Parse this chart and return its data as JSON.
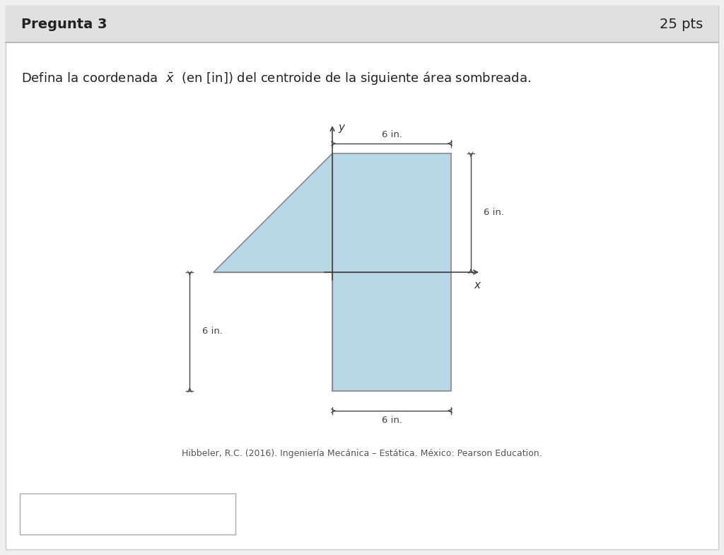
{
  "bg_color": "#f0f0f0",
  "panel_bg": "#ffffff",
  "header_bg": "#e0e0e0",
  "header_text": "Pregunta 3",
  "pts_text": "25 pts",
  "question_text": "Defina la coordenada  $\\bar{x}$  (en [in]) del centroide de la siguiente área sombreada.",
  "citation_text": "Hibbeler, R.C. (2016). Ingeniería Mecánica – Estática. México: Pearson Education.",
  "shape_fill": "#b8d8e8",
  "shape_edge": "#888888",
  "axis_color": "#444444",
  "dim_color": "#444444",
  "dim_tick_color": "#555555"
}
